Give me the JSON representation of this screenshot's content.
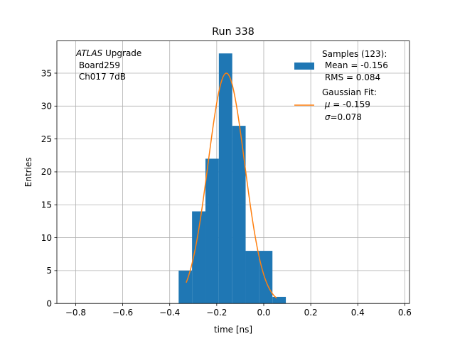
{
  "chart_data": {
    "type": "bar",
    "title": "Run 338",
    "xlabel": "time [ns]",
    "ylabel": "Entries",
    "xlim": [
      -0.88,
      0.62
    ],
    "ylim": [
      0,
      39.9
    ],
    "grid": true,
    "xticks": [
      -0.8,
      -0.6,
      -0.4,
      -0.2,
      0.0,
      0.2,
      0.4,
      0.6
    ],
    "xtick_labels": [
      "−0.8",
      "−0.6",
      "−0.4",
      "−0.2",
      "0.0",
      "0.2",
      "0.4",
      "0.6"
    ],
    "yticks": [
      0,
      5,
      10,
      15,
      20,
      25,
      30,
      35
    ],
    "ytick_labels": [
      "0",
      "5",
      "10",
      "15",
      "20",
      "25",
      "30",
      "35"
    ],
    "histogram": {
      "name": "Samples",
      "color": "#1f77b4",
      "bin_edges": [
        -0.362,
        -0.305,
        -0.248,
        -0.191,
        -0.134,
        -0.077,
        -0.02,
        0.037,
        0.094
      ],
      "counts": [
        5,
        14,
        22,
        38,
        27,
        8,
        8,
        1
      ]
    },
    "gaussian_fit": {
      "name": "Gaussian Fit",
      "color": "#ff7f0e",
      "mu": -0.159,
      "sigma": 0.078,
      "amplitude": 35,
      "x_range": [
        -0.33,
        0.055
      ]
    },
    "annotation": {
      "italic": "ATLAS",
      "line1_rest": " Upgrade",
      "line2": " Board259",
      "line3": " Ch017 7dB"
    },
    "legend": {
      "position": "top-right",
      "samples_line1": "Samples (123):",
      "samples_line2": " Mean = -0.156",
      "samples_line3": " RMS = 0.084",
      "fit_line1": "Gaussian Fit:",
      "fit_line2_symbol": "μ",
      "fit_line2_rest": " = -0.159",
      "fit_line3_symbol": "σ",
      "fit_line3_rest": "=0.078"
    }
  }
}
